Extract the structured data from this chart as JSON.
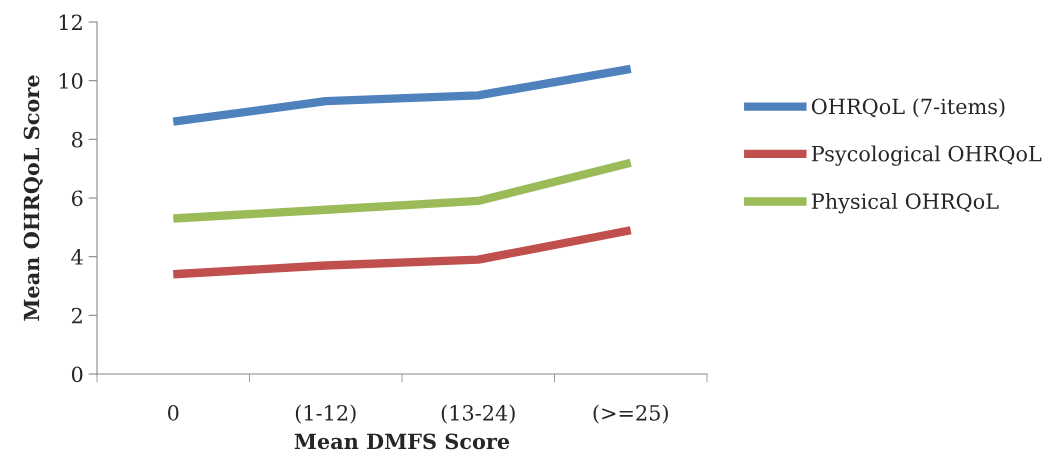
{
  "chart_data": {
    "type": "line",
    "xlabel": "Mean DMFS Score",
    "ylabel": "Mean OHRQoL Score",
    "categories": [
      "0",
      "(1-12)",
      "(13-24)",
      "(>=25)"
    ],
    "series": [
      {
        "name": "OHRQoL (7-items)",
        "color": "#4f81bd",
        "values": [
          8.6,
          9.3,
          9.5,
          10.4
        ]
      },
      {
        "name": "Psycological OHRQoL",
        "color": "#c0504d",
        "values": [
          3.4,
          3.7,
          3.9,
          4.9
        ]
      },
      {
        "name": "Physical OHRQoL",
        "color": "#9bbb59",
        "values": [
          5.3,
          5.6,
          5.9,
          7.2
        ]
      }
    ],
    "ylim": [
      0,
      12
    ],
    "yticks": [
      0,
      2,
      4,
      6,
      8,
      10,
      12
    ],
    "grid": false,
    "legend": "right",
    "marker": "none",
    "line_style": "solid"
  }
}
